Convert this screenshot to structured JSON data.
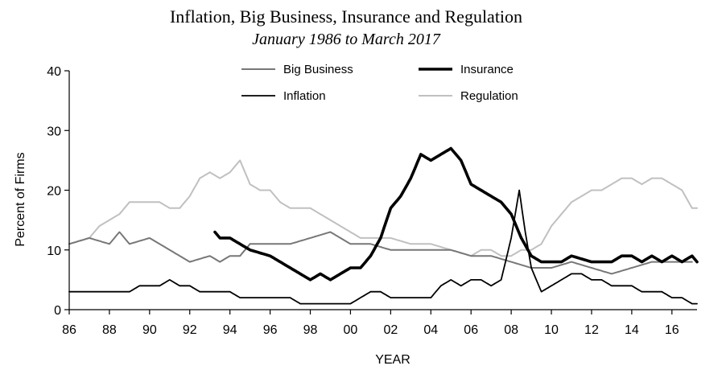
{
  "chart_data": {
    "type": "line",
    "title": "Inflation, Big Business, Insurance and Regulation",
    "subtitle": "January 1986 to March 2017",
    "xlabel": "YEAR",
    "ylabel": "Percent of Firms",
    "xlim": [
      1986.0,
      2017.25
    ],
    "ylim": [
      0,
      40
    ],
    "x_ticks": [
      1986,
      1988,
      1990,
      1992,
      1994,
      1996,
      1998,
      2000,
      2002,
      2004,
      2006,
      2008,
      2010,
      2012,
      2014,
      2016
    ],
    "x_tick_labels": [
      "86",
      "88",
      "90",
      "92",
      "94",
      "96",
      "98",
      "00",
      "02",
      "04",
      "06",
      "08",
      "10",
      "12",
      "14",
      "16"
    ],
    "y_ticks": [
      0,
      10,
      20,
      30,
      40
    ],
    "y_tick_labels": [
      "0",
      "10",
      "20",
      "30",
      "40"
    ],
    "grid": false,
    "legend": "top-center",
    "series": [
      {
        "name": "Big Business",
        "color": "#777777",
        "width": 2,
        "points": [
          [
            1986.0,
            11
          ],
          [
            1987.0,
            12
          ],
          [
            1988.0,
            11
          ],
          [
            1988.5,
            13
          ],
          [
            1989.0,
            11
          ],
          [
            1990.0,
            12
          ],
          [
            1991.0,
            10
          ],
          [
            1991.5,
            9
          ],
          [
            1992.0,
            8
          ],
          [
            1993.0,
            9
          ],
          [
            1993.5,
            8
          ],
          [
            1994.0,
            9
          ],
          [
            1994.5,
            9
          ],
          [
            1995.0,
            11
          ],
          [
            1996.0,
            11
          ],
          [
            1997.0,
            11
          ],
          [
            1998.0,
            12
          ],
          [
            1999.0,
            13
          ],
          [
            1999.5,
            12
          ],
          [
            2000.0,
            11
          ],
          [
            2001.0,
            11
          ],
          [
            2002.0,
            10
          ],
          [
            2003.0,
            10
          ],
          [
            2004.0,
            10
          ],
          [
            2005.0,
            10
          ],
          [
            2006.0,
            9
          ],
          [
            2007.0,
            9
          ],
          [
            2008.0,
            8
          ],
          [
            2009.0,
            7
          ],
          [
            2010.0,
            7
          ],
          [
            2011.0,
            8
          ],
          [
            2012.0,
            7
          ],
          [
            2013.0,
            6
          ],
          [
            2014.0,
            7
          ],
          [
            2015.0,
            8
          ],
          [
            2016.0,
            8
          ],
          [
            2017.0,
            8
          ]
        ]
      },
      {
        "name": "Insurance",
        "color": "#000000",
        "width": 3.6,
        "points": [
          [
            1993.25,
            13
          ],
          [
            1993.5,
            12
          ],
          [
            1994.0,
            12
          ],
          [
            1994.5,
            11
          ],
          [
            1995.0,
            10
          ],
          [
            1996.0,
            9
          ],
          [
            1996.5,
            8
          ],
          [
            1997.0,
            7
          ],
          [
            1997.5,
            6
          ],
          [
            1998.0,
            5
          ],
          [
            1998.5,
            6
          ],
          [
            1999.0,
            5
          ],
          [
            1999.5,
            6
          ],
          [
            2000.0,
            7
          ],
          [
            2000.5,
            7
          ],
          [
            2001.0,
            9
          ],
          [
            2001.5,
            12
          ],
          [
            2002.0,
            17
          ],
          [
            2002.5,
            19
          ],
          [
            2003.0,
            22
          ],
          [
            2003.5,
            26
          ],
          [
            2004.0,
            25
          ],
          [
            2004.5,
            26
          ],
          [
            2005.0,
            27
          ],
          [
            2005.5,
            25
          ],
          [
            2006.0,
            21
          ],
          [
            2006.5,
            20
          ],
          [
            2007.0,
            19
          ],
          [
            2007.5,
            18
          ],
          [
            2008.0,
            16
          ],
          [
            2008.5,
            12
          ],
          [
            2009.0,
            9
          ],
          [
            2009.5,
            8
          ],
          [
            2010.0,
            8
          ],
          [
            2010.5,
            8
          ],
          [
            2011.0,
            9
          ],
          [
            2012.0,
            8
          ],
          [
            2013.0,
            8
          ],
          [
            2013.5,
            9
          ],
          [
            2014.0,
            9
          ],
          [
            2014.5,
            8
          ],
          [
            2015.0,
            9
          ],
          [
            2015.5,
            8
          ],
          [
            2016.0,
            9
          ],
          [
            2016.5,
            8
          ],
          [
            2017.0,
            9
          ],
          [
            2017.25,
            8
          ]
        ]
      },
      {
        "name": "Inflation",
        "color": "#000000",
        "width": 1.8,
        "points": [
          [
            1986.0,
            3
          ],
          [
            1987.0,
            3
          ],
          [
            1988.0,
            3
          ],
          [
            1989.0,
            3
          ],
          [
            1989.5,
            4
          ],
          [
            1990.0,
            4
          ],
          [
            1990.5,
            4
          ],
          [
            1991.0,
            5
          ],
          [
            1991.5,
            4
          ],
          [
            1992.0,
            4
          ],
          [
            1992.5,
            3
          ],
          [
            1993.0,
            3
          ],
          [
            1993.5,
            3
          ],
          [
            1994.0,
            3
          ],
          [
            1994.5,
            2
          ],
          [
            1995.0,
            2
          ],
          [
            1996.0,
            2
          ],
          [
            1997.0,
            2
          ],
          [
            1997.5,
            1
          ],
          [
            1998.0,
            1
          ],
          [
            1999.0,
            1
          ],
          [
            1999.5,
            1
          ],
          [
            2000.0,
            1
          ],
          [
            2000.5,
            2
          ],
          [
            2001.0,
            3
          ],
          [
            2001.5,
            3
          ],
          [
            2002.0,
            2
          ],
          [
            2002.5,
            2
          ],
          [
            2003.0,
            2
          ],
          [
            2003.5,
            2
          ],
          [
            2004.0,
            2
          ],
          [
            2004.5,
            4
          ],
          [
            2005.0,
            5
          ],
          [
            2005.5,
            4
          ],
          [
            2006.0,
            5
          ],
          [
            2006.5,
            5
          ],
          [
            2007.0,
            4
          ],
          [
            2007.5,
            5
          ],
          [
            2008.0,
            12
          ],
          [
            2008.4,
            20
          ],
          [
            2008.7,
            13
          ],
          [
            2009.0,
            7
          ],
          [
            2009.5,
            3
          ],
          [
            2010.0,
            4
          ],
          [
            2010.5,
            5
          ],
          [
            2011.0,
            6
          ],
          [
            2011.5,
            6
          ],
          [
            2012.0,
            5
          ],
          [
            2012.5,
            5
          ],
          [
            2013.0,
            4
          ],
          [
            2013.5,
            4
          ],
          [
            2014.0,
            4
          ],
          [
            2014.5,
            3
          ],
          [
            2015.0,
            3
          ],
          [
            2015.5,
            3
          ],
          [
            2016.0,
            2
          ],
          [
            2016.5,
            2
          ],
          [
            2017.0,
            1
          ],
          [
            2017.25,
            1
          ]
        ]
      },
      {
        "name": "Regulation",
        "color": "#c0c0c0",
        "width": 2,
        "points": [
          [
            1986.0,
            11
          ],
          [
            1987.0,
            12
          ],
          [
            1987.5,
            14
          ],
          [
            1988.0,
            15
          ],
          [
            1988.5,
            16
          ],
          [
            1989.0,
            18
          ],
          [
            1989.5,
            18
          ],
          [
            1990.0,
            18
          ],
          [
            1990.5,
            18
          ],
          [
            1991.0,
            17
          ],
          [
            1991.5,
            17
          ],
          [
            1992.0,
            19
          ],
          [
            1992.5,
            22
          ],
          [
            1993.0,
            23
          ],
          [
            1993.5,
            22
          ],
          [
            1994.0,
            23
          ],
          [
            1994.5,
            25
          ],
          [
            1995.0,
            21
          ],
          [
            1995.5,
            20
          ],
          [
            1996.0,
            20
          ],
          [
            1996.5,
            18
          ],
          [
            1997.0,
            17
          ],
          [
            1997.5,
            17
          ],
          [
            1998.0,
            17
          ],
          [
            1998.5,
            16
          ],
          [
            1999.0,
            15
          ],
          [
            1999.5,
            14
          ],
          [
            2000.0,
            13
          ],
          [
            2000.5,
            12
          ],
          [
            2001.0,
            12
          ],
          [
            2001.5,
            12
          ],
          [
            2002.0,
            12
          ],
          [
            2003.0,
            11
          ],
          [
            2004.0,
            11
          ],
          [
            2005.0,
            10
          ],
          [
            2006.0,
            9
          ],
          [
            2006.5,
            10
          ],
          [
            2007.0,
            10
          ],
          [
            2007.5,
            9
          ],
          [
            2008.0,
            9
          ],
          [
            2008.5,
            10
          ],
          [
            2009.0,
            10
          ],
          [
            2009.5,
            11
          ],
          [
            2010.0,
            14
          ],
          [
            2010.5,
            16
          ],
          [
            2011.0,
            18
          ],
          [
            2011.5,
            19
          ],
          [
            2012.0,
            20
          ],
          [
            2012.5,
            20
          ],
          [
            2013.0,
            21
          ],
          [
            2013.5,
            22
          ],
          [
            2014.0,
            22
          ],
          [
            2014.5,
            21
          ],
          [
            2015.0,
            22
          ],
          [
            2015.5,
            22
          ],
          [
            2016.0,
            21
          ],
          [
            2016.5,
            20
          ],
          [
            2017.0,
            17
          ],
          [
            2017.25,
            17
          ]
        ]
      }
    ]
  }
}
